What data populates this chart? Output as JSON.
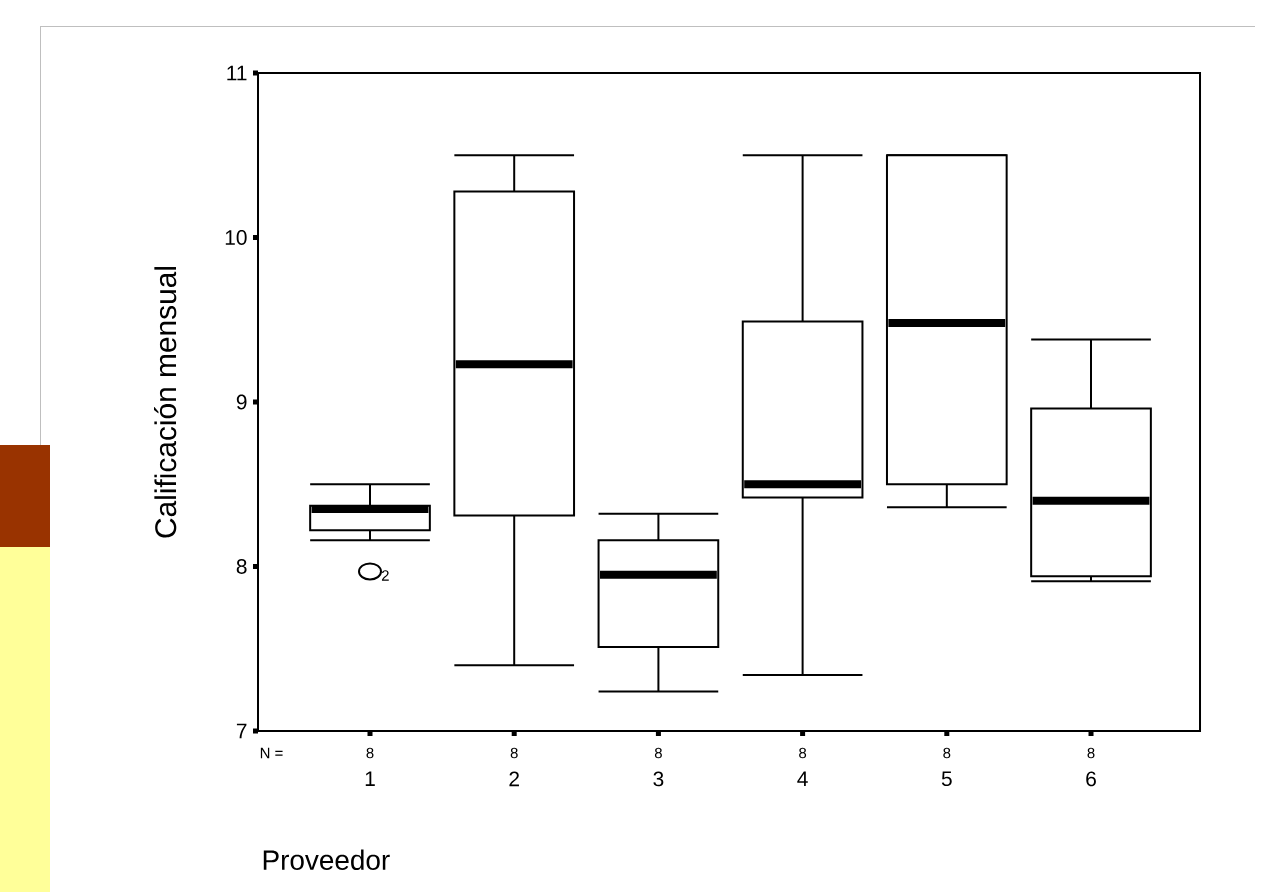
{
  "chart_data": {
    "type": "box",
    "xlabel": "Proveedor",
    "ylabel": "Calificación mensual",
    "categories": [
      "1",
      "2",
      "3",
      "4",
      "5",
      "6"
    ],
    "boxes": [
      {
        "low": 8.16,
        "q1": 8.22,
        "median": 8.35,
        "q3": 8.37,
        "high": 8.5,
        "outliers": [
          7.97
        ]
      },
      {
        "low": 7.4,
        "q1": 8.31,
        "median": 9.23,
        "q3": 10.28,
        "high": 10.5
      },
      {
        "low": 7.24,
        "q1": 7.51,
        "median": 7.95,
        "q3": 8.16,
        "high": 8.32
      },
      {
        "low": 7.34,
        "q1": 8.42,
        "median": 8.5,
        "q3": 9.49,
        "high": 10.5
      },
      {
        "low": 8.36,
        "q1": 8.5,
        "median": 9.48,
        "q3": 10.5,
        "high": 10.5
      },
      {
        "low": 7.91,
        "q1": 7.94,
        "median": 8.4,
        "q3": 8.96,
        "high": 9.38
      }
    ],
    "ylim": [
      7,
      11
    ],
    "yticks": [
      7,
      8,
      9,
      10,
      11
    ],
    "grid": false,
    "annotations": [
      "N =",
      "8",
      "8",
      "8",
      "8",
      "8",
      "8",
      "2"
    ]
  }
}
